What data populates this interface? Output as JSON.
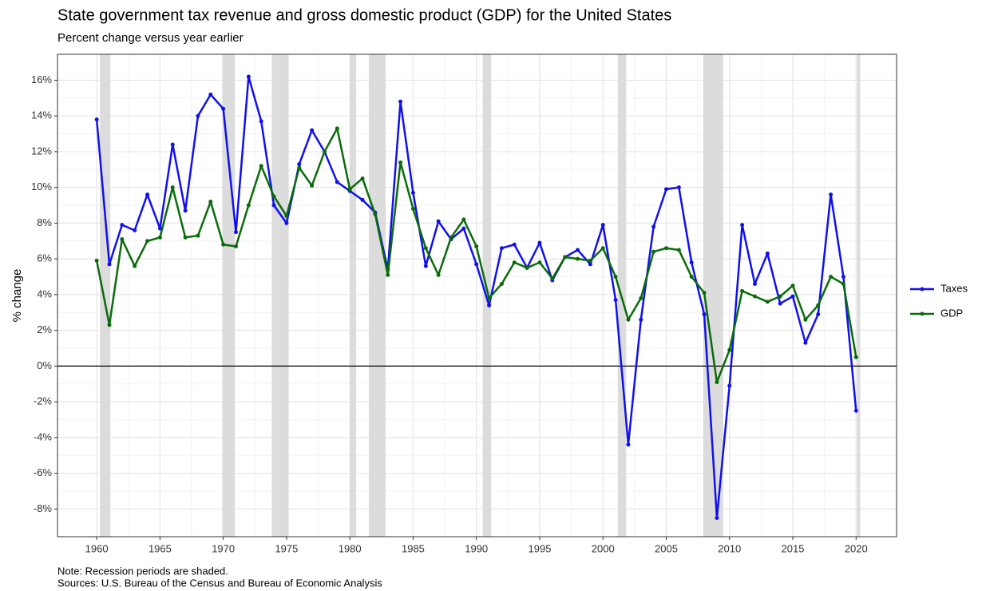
{
  "chart_data": {
    "type": "line",
    "title": "State government tax revenue and gross domestic product (GDP) for the United States",
    "subtitle": "Percent change versus year earlier",
    "y_label": "% change",
    "notes": [
      "Note: Recession periods are shaded.",
      "Sources: U.S. Bureau of the Census and Bureau of Economic Analysis"
    ],
    "x": [
      1960,
      1961,
      1962,
      1963,
      1964,
      1965,
      1966,
      1967,
      1968,
      1969,
      1970,
      1971,
      1972,
      1973,
      1974,
      1975,
      1976,
      1977,
      1978,
      1979,
      1980,
      1981,
      1982,
      1983,
      1984,
      1985,
      1986,
      1987,
      1988,
      1989,
      1990,
      1991,
      1992,
      1993,
      1994,
      1995,
      1996,
      1997,
      1998,
      1999,
      2000,
      2001,
      2002,
      2003,
      2004,
      2005,
      2006,
      2007,
      2008,
      2009,
      2010,
      2011,
      2012,
      2013,
      2014,
      2015,
      2016,
      2017,
      2018,
      2019,
      2020
    ],
    "series": [
      {
        "name": "Taxes",
        "color": "#1010ee",
        "values": [
          13.8,
          5.7,
          7.9,
          7.6,
          9.6,
          7.7,
          12.4,
          8.7,
          14.0,
          15.2,
          14.4,
          7.5,
          16.2,
          13.7,
          9.0,
          8.0,
          11.3,
          13.2,
          12.0,
          10.3,
          9.8,
          9.3,
          8.6,
          5.4,
          14.8,
          9.7,
          5.6,
          8.1,
          7.1,
          7.7,
          5.7,
          3.4,
          6.6,
          6.8,
          5.5,
          6.9,
          4.8,
          6.1,
          6.5,
          5.7,
          7.9,
          3.7,
          -4.4,
          2.6,
          7.8,
          9.9,
          10.0,
          5.8,
          2.9,
          -8.5,
          -1.1,
          7.9,
          4.6,
          6.3,
          3.5,
          3.9,
          1.3,
          2.9,
          9.6,
          5.0,
          -2.5
        ]
      },
      {
        "name": "GDP",
        "color": "#0a6b0a",
        "values": [
          5.9,
          2.3,
          7.1,
          5.6,
          7.0,
          7.2,
          10.0,
          7.2,
          7.3,
          9.2,
          6.8,
          6.7,
          9.0,
          11.2,
          9.5,
          8.4,
          11.1,
          10.1,
          12.0,
          13.3,
          9.9,
          10.5,
          8.5,
          5.1,
          11.4,
          8.8,
          6.6,
          5.1,
          7.2,
          8.2,
          6.7,
          3.8,
          4.6,
          5.8,
          5.5,
          5.8,
          4.9,
          6.1,
          6.0,
          5.9,
          6.6,
          5.0,
          2.6,
          3.8,
          6.4,
          6.6,
          6.5,
          5.0,
          4.1,
          -0.9,
          0.9,
          4.2,
          3.9,
          3.6,
          3.9,
          4.5,
          2.6,
          3.4,
          5.0,
          4.6,
          0.5
        ]
      }
    ],
    "recessions": [
      [
        1960.25,
        1961.08
      ],
      [
        1969.92,
        1970.92
      ],
      [
        1973.83,
        1975.17
      ],
      [
        1980.0,
        1980.5
      ],
      [
        1981.5,
        1982.83
      ],
      [
        1990.5,
        1991.17
      ],
      [
        2001.17,
        2001.83
      ],
      [
        2007.92,
        2009.5
      ],
      [
        2020.08,
        2020.33
      ]
    ],
    "recession_color": "#dcdcdc",
    "xlim": [
      1956.9,
      2023.2
    ],
    "ylim": [
      -9.55,
      17.45
    ],
    "xticks": [
      1960,
      1965,
      1970,
      1975,
      1980,
      1985,
      1990,
      1995,
      2000,
      2005,
      2010,
      2015,
      2020
    ],
    "yticks": [
      {
        "value": -8,
        "label": "-8%"
      },
      {
        "value": -6,
        "label": "-6%"
      },
      {
        "value": -4,
        "label": "-4%"
      },
      {
        "value": -2,
        "label": "-2%"
      },
      {
        "value": 0,
        "label": "0%"
      },
      {
        "value": 2,
        "label": "2%"
      },
      {
        "value": 4,
        "label": "4%"
      },
      {
        "value": 6,
        "label": "6%"
      },
      {
        "value": 8,
        "label": "8%"
      },
      {
        "value": 10,
        "label": "10%"
      },
      {
        "value": 12,
        "label": "12%"
      },
      {
        "value": 14,
        "label": "14%"
      },
      {
        "value": 16,
        "label": "16%"
      }
    ],
    "hline": 0,
    "grid": true,
    "legend": "right"
  }
}
